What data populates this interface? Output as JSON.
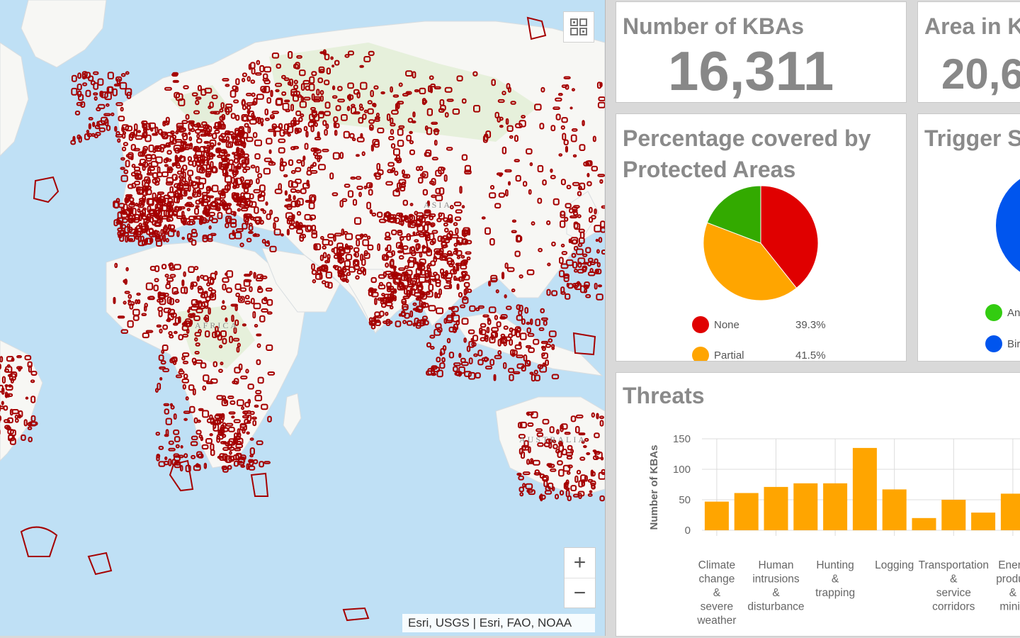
{
  "map": {
    "labels": {
      "asia": "ASIA",
      "africa": "AFRICA",
      "australia": "AUSTRALIA"
    },
    "attribution": "Esri, USGS | Esri, FAO, NOAA",
    "zoom_in": "+",
    "zoom_out": "−",
    "grid_icon": "basemap-gallery-icon",
    "kba_color": "#a50000"
  },
  "kba_count": {
    "title": "Number of KBAs",
    "value": "16,311"
  },
  "area": {
    "title": "Area in K",
    "value": "20,6"
  },
  "protected": {
    "title_line1": "Percentage covered by",
    "title_line2": "Protected Areas",
    "legend": [
      {
        "label": "None",
        "value": "39.3%",
        "color": "#e00000"
      },
      {
        "label": "Partial",
        "value": "41.5%",
        "color": "#ffa500"
      }
    ]
  },
  "trigger": {
    "title": "Trigger S",
    "legend": [
      {
        "label": "An",
        "color": "#33cc11"
      },
      {
        "label": "Bir",
        "color": "#0055ee"
      }
    ]
  },
  "threats": {
    "title": "Threats"
  },
  "chart_data": [
    {
      "type": "pie",
      "categories": [
        "None",
        "Partial",
        ""
      ],
      "values": [
        39.3,
        41.5,
        19.2
      ],
      "colors": [
        "#e00000",
        "#ffa500",
        "#33aa00"
      ]
    },
    {
      "type": "bar",
      "ylabel": "Number of KBAs",
      "ylim": [
        0,
        150
      ],
      "yticks": [
        0,
        50,
        100,
        150
      ],
      "grid": true,
      "color": "#ffa500",
      "categories": [
        "Climate change & severe weather",
        "",
        "Human intrusions & disturbance",
        "",
        "Hunting & trapping",
        "",
        "Logging",
        "",
        "Transportation & service corridors",
        "",
        "Energy production & mining"
      ],
      "tick_labels": [
        [
          "Climate",
          "change",
          "&",
          "severe",
          "weather"
        ],
        [],
        [
          "Human",
          "intrusions",
          "&",
          "disturbance"
        ],
        [],
        [
          "Hunting",
          "&",
          "trapping"
        ],
        [],
        [
          "Logging"
        ],
        [],
        [
          "Transportation",
          "&",
          "service",
          "corridors"
        ],
        [],
        [
          "Energ",
          "produc",
          "&",
          "minin"
        ]
      ],
      "values": [
        47,
        61,
        71,
        77,
        77,
        135,
        67,
        20,
        50,
        29,
        60
      ]
    }
  ]
}
